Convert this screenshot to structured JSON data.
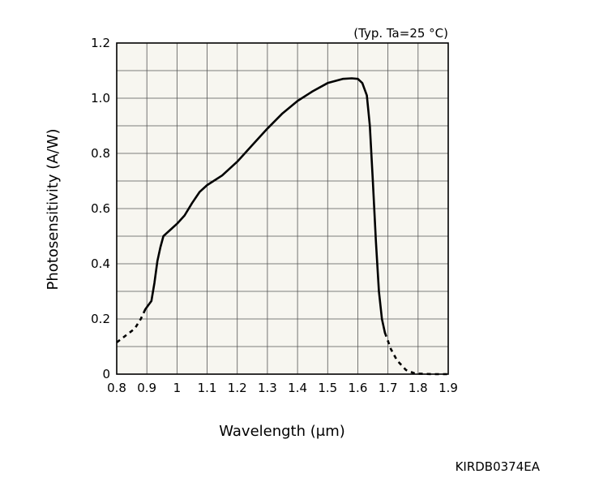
{
  "chart_data": {
    "type": "line",
    "condition_note": "(Typ. Ta=25 °C)",
    "xlabel": "Wavelength (μm)",
    "ylabel": "Photosensitivity (A/W)",
    "xlim": [
      0.8,
      1.9
    ],
    "ylim": [
      0,
      1.2
    ],
    "x_ticks": [
      "0.8",
      "0.9",
      "1",
      "1.1",
      "1.2",
      "1.3",
      "1.4",
      "1.5",
      "1.6",
      "1.7",
      "1.8",
      "1.9"
    ],
    "y_ticks": [
      "0",
      "0.2",
      "0.4",
      "0.6",
      "0.8",
      "1.0",
      "1.2"
    ],
    "grid": true,
    "series": [
      {
        "segment": "dashed-short-wavelength",
        "style": "dashed",
        "points": [
          [
            0.8,
            0.115
          ],
          [
            0.83,
            0.14
          ],
          [
            0.86,
            0.165
          ],
          [
            0.88,
            0.2
          ],
          [
            0.895,
            0.235
          ]
        ]
      },
      {
        "segment": "solid-main",
        "style": "solid",
        "points": [
          [
            0.895,
            0.235
          ],
          [
            0.905,
            0.25
          ],
          [
            0.915,
            0.265
          ],
          [
            0.925,
            0.33
          ],
          [
            0.935,
            0.41
          ],
          [
            0.945,
            0.46
          ],
          [
            0.955,
            0.5
          ],
          [
            0.965,
            0.51
          ],
          [
            0.98,
            0.525
          ],
          [
            1.0,
            0.545
          ],
          [
            1.025,
            0.575
          ],
          [
            1.05,
            0.62
          ],
          [
            1.075,
            0.66
          ],
          [
            1.1,
            0.685
          ],
          [
            1.15,
            0.72
          ],
          [
            1.2,
            0.77
          ],
          [
            1.25,
            0.83
          ],
          [
            1.3,
            0.89
          ],
          [
            1.35,
            0.945
          ],
          [
            1.4,
            0.99
          ],
          [
            1.45,
            1.025
          ],
          [
            1.5,
            1.055
          ],
          [
            1.55,
            1.07
          ],
          [
            1.58,
            1.072
          ],
          [
            1.6,
            1.07
          ],
          [
            1.615,
            1.055
          ],
          [
            1.63,
            1.01
          ],
          [
            1.64,
            0.9
          ],
          [
            1.65,
            0.7
          ],
          [
            1.66,
            0.48
          ],
          [
            1.67,
            0.3
          ],
          [
            1.68,
            0.2
          ],
          [
            1.69,
            0.15
          ]
        ]
      },
      {
        "segment": "dashed-long-wavelength",
        "style": "dashed",
        "points": [
          [
            1.69,
            0.15
          ],
          [
            1.71,
            0.09
          ],
          [
            1.73,
            0.05
          ],
          [
            1.76,
            0.015
          ],
          [
            1.79,
            0.002
          ],
          [
            1.85,
            0.0
          ],
          [
            1.9,
            0.0
          ]
        ]
      }
    ]
  },
  "figure_code": "KIRDB0374EA"
}
